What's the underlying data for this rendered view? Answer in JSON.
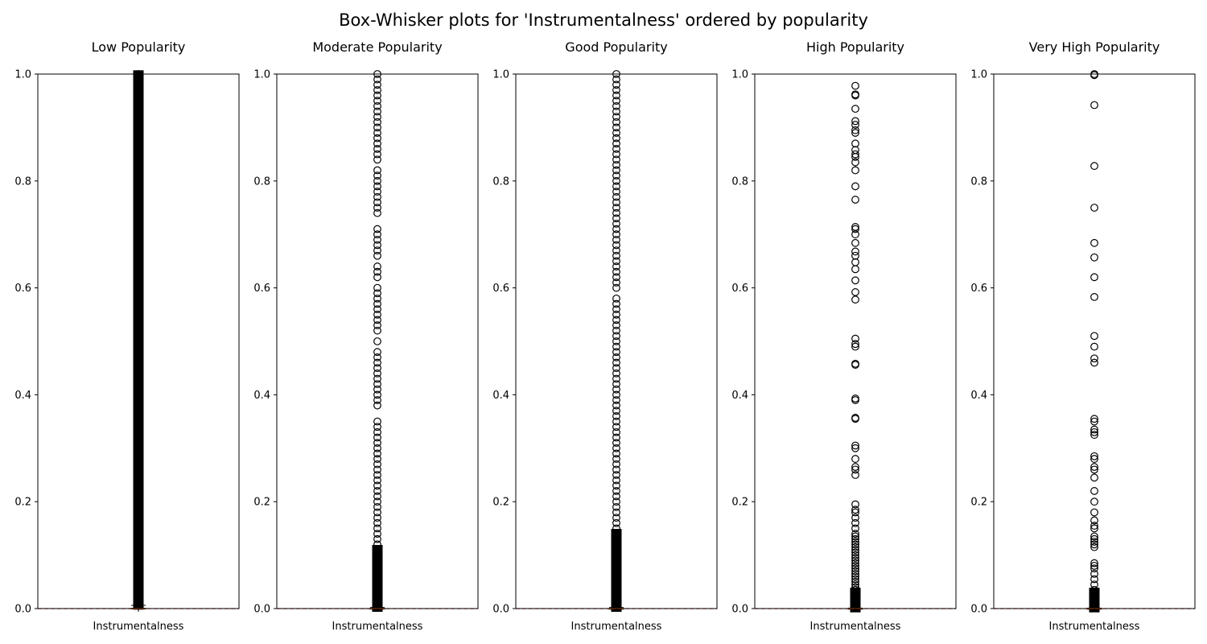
{
  "chart_data": {
    "type": "box",
    "title": "Box-Whisker plots for 'Instrumentalness' ordered by popularity",
    "ylim": [
      0,
      1
    ],
    "yticks": [
      "0.0",
      "0.2",
      "0.4",
      "0.6",
      "0.8",
      "1.0"
    ],
    "reference_line": {
      "y": 0.0,
      "color": "#d62728",
      "style": "dashed"
    },
    "grid": false,
    "panels": [
      {
        "title": "Low Popularity",
        "xlabel": "Instrumentalness",
        "box": {
          "q1": 0.0,
          "median": 0.0,
          "q3": 0.0005,
          "whisker_low": 0.0,
          "whisker_high": 0.006
        },
        "outliers_dense_range": [
          0.007,
          0.998
        ],
        "outliers": [
          0.01,
          0.02,
          0.03,
          0.04,
          0.05,
          0.06,
          0.07,
          0.08,
          0.09,
          0.1,
          0.12,
          0.14,
          0.16,
          0.18,
          0.2,
          0.22,
          0.24,
          0.26,
          0.28,
          0.3,
          0.32,
          0.34,
          0.36,
          0.38,
          0.4,
          0.42,
          0.44,
          0.46,
          0.48,
          0.5,
          0.52,
          0.54,
          0.56,
          0.58,
          0.6,
          0.62,
          0.64,
          0.66,
          0.68,
          0.7,
          0.72,
          0.74,
          0.76,
          0.78,
          0.8,
          0.82,
          0.84,
          0.86,
          0.88,
          0.9,
          0.92,
          0.94,
          0.96,
          0.98,
          0.99,
          1.0
        ]
      },
      {
        "title": "Moderate Popularity",
        "xlabel": "Instrumentalness",
        "box": {
          "q1": 0.0,
          "median": 0.0,
          "q3": 0.0002,
          "whisker_low": 0.0,
          "whisker_high": 0.002
        },
        "outliers_dense_range": [
          0.003,
          0.11
        ],
        "outliers": [
          0.12,
          0.13,
          0.14,
          0.15,
          0.16,
          0.17,
          0.18,
          0.19,
          0.2,
          0.21,
          0.22,
          0.23,
          0.24,
          0.25,
          0.26,
          0.27,
          0.28,
          0.29,
          0.3,
          0.31,
          0.32,
          0.33,
          0.34,
          0.35,
          0.38,
          0.39,
          0.4,
          0.41,
          0.42,
          0.43,
          0.44,
          0.45,
          0.46,
          0.47,
          0.48,
          0.5,
          0.52,
          0.53,
          0.54,
          0.55,
          0.56,
          0.57,
          0.58,
          0.59,
          0.6,
          0.62,
          0.63,
          0.64,
          0.66,
          0.67,
          0.68,
          0.69,
          0.7,
          0.71,
          0.74,
          0.75,
          0.76,
          0.77,
          0.78,
          0.79,
          0.8,
          0.81,
          0.82,
          0.84,
          0.85,
          0.86,
          0.87,
          0.88,
          0.89,
          0.9,
          0.91,
          0.92,
          0.93,
          0.94,
          0.95,
          0.96,
          0.97,
          0.98,
          0.99,
          1.0
        ]
      },
      {
        "title": "Good Popularity",
        "xlabel": "Instrumentalness",
        "box": {
          "q1": 0.0,
          "median": 0.0,
          "q3": 0.0001,
          "whisker_low": 0.0,
          "whisker_high": 0.002
        },
        "outliers_dense_range": [
          0.003,
          0.14
        ],
        "outliers": [
          0.15,
          0.16,
          0.17,
          0.18,
          0.19,
          0.2,
          0.21,
          0.22,
          0.23,
          0.24,
          0.25,
          0.26,
          0.27,
          0.28,
          0.29,
          0.3,
          0.31,
          0.32,
          0.33,
          0.34,
          0.35,
          0.36,
          0.37,
          0.38,
          0.39,
          0.4,
          0.41,
          0.42,
          0.43,
          0.44,
          0.45,
          0.46,
          0.47,
          0.48,
          0.49,
          0.5,
          0.51,
          0.52,
          0.53,
          0.54,
          0.55,
          0.56,
          0.57,
          0.58,
          0.6,
          0.61,
          0.62,
          0.63,
          0.64,
          0.65,
          0.66,
          0.67,
          0.68,
          0.69,
          0.7,
          0.71,
          0.72,
          0.73,
          0.74,
          0.75,
          0.76,
          0.77,
          0.78,
          0.79,
          0.8,
          0.81,
          0.82,
          0.83,
          0.84,
          0.85,
          0.86,
          0.87,
          0.88,
          0.89,
          0.9,
          0.91,
          0.92,
          0.93,
          0.94,
          0.95,
          0.96,
          0.97,
          0.98,
          0.99,
          1.0
        ]
      },
      {
        "title": "High Popularity",
        "xlabel": "Instrumentalness",
        "box": {
          "q1": 0.0,
          "median": 0.0,
          "q3": 0.0001,
          "whisker_low": 0.0,
          "whisker_high": 0.001
        },
        "outliers_dense_range": [
          0.002,
          0.03
        ],
        "outliers": [
          0.035,
          0.04,
          0.045,
          0.05,
          0.055,
          0.06,
          0.065,
          0.07,
          0.075,
          0.08,
          0.085,
          0.09,
          0.095,
          0.1,
          0.105,
          0.11,
          0.115,
          0.12,
          0.125,
          0.13,
          0.135,
          0.14,
          0.15,
          0.16,
          0.17,
          0.18,
          0.185,
          0.195,
          0.25,
          0.26,
          0.265,
          0.28,
          0.3,
          0.305,
          0.355,
          0.357,
          0.39,
          0.393,
          0.456,
          0.458,
          0.49,
          0.495,
          0.505,
          0.578,
          0.592,
          0.614,
          0.635,
          0.648,
          0.66,
          0.668,
          0.684,
          0.7,
          0.71,
          0.714,
          0.765,
          0.79,
          0.82,
          0.835,
          0.845,
          0.85,
          0.858,
          0.87,
          0.89,
          0.895,
          0.905,
          0.912,
          0.935,
          0.96,
          0.962,
          0.978
        ]
      },
      {
        "title": "Very High Popularity",
        "xlabel": "Instrumentalness",
        "box": {
          "q1": 0.0,
          "median": 0.0,
          "q3": 0.0001,
          "whisker_low": 0.0,
          "whisker_high": 0.001
        },
        "outliers_dense_range": [
          0.002,
          0.03
        ],
        "outliers": [
          0.035,
          0.045,
          0.055,
          0.065,
          0.075,
          0.08,
          0.085,
          0.115,
          0.12,
          0.125,
          0.13,
          0.135,
          0.15,
          0.155,
          0.165,
          0.18,
          0.2,
          0.22,
          0.245,
          0.26,
          0.265,
          0.28,
          0.285,
          0.325,
          0.33,
          0.335,
          0.35,
          0.355,
          0.46,
          0.468,
          0.49,
          0.51,
          0.583,
          0.62,
          0.657,
          0.684,
          0.75,
          0.828,
          0.942,
          0.998,
          1.0
        ]
      }
    ]
  }
}
